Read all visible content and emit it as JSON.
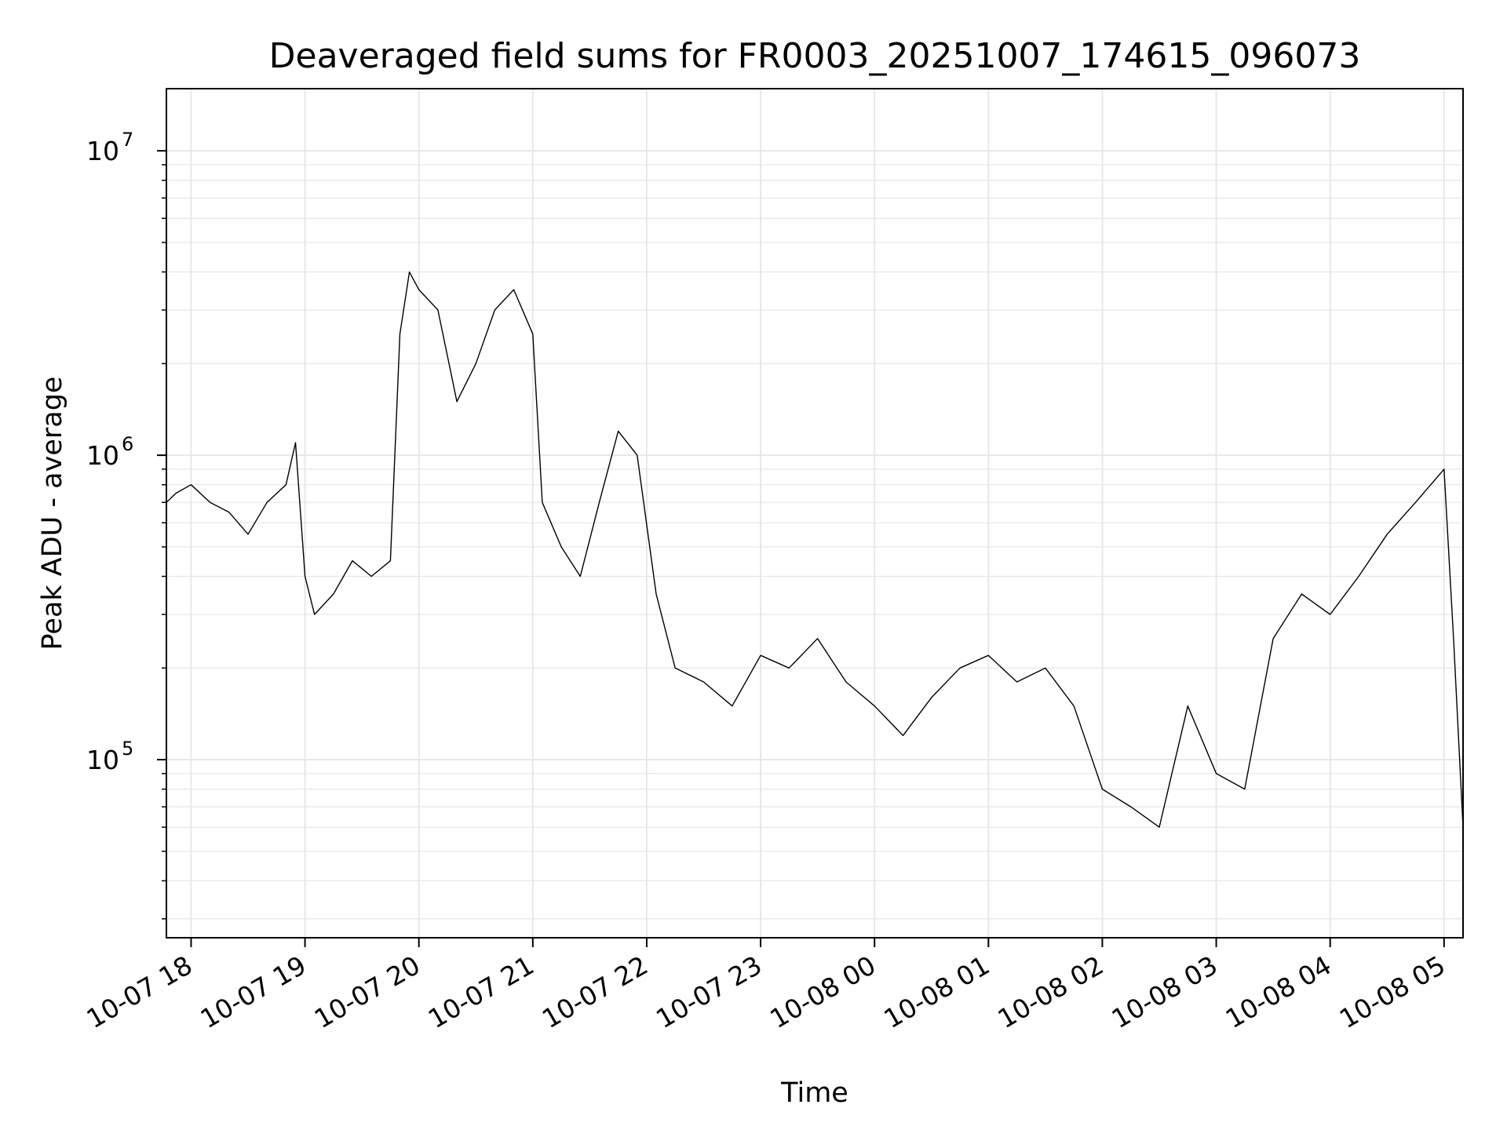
{
  "chart_data": {
    "type": "line",
    "title": "Deaveraged field sums for FR0003_20251007_174615_096073",
    "xlabel": "Time",
    "ylabel": "Peak ADU - average",
    "y_scale": "log",
    "ylim": [
      26000,
      16000000
    ],
    "xlim": [
      "2025-10-07T17:47",
      "2025-10-08T05:10"
    ],
    "x_ticks": [
      "10-07 18",
      "10-07 19",
      "10-07 20",
      "10-07 21",
      "10-07 22",
      "10-07 23",
      "10-08 00",
      "10-08 01",
      "10-08 02",
      "10-08 03",
      "10-08 04",
      "10-08 05"
    ],
    "y_ticks": [
      {
        "base": "10",
        "exp": "5",
        "value": 100000
      },
      {
        "base": "10",
        "exp": "6",
        "value": 1000000
      },
      {
        "base": "10",
        "exp": "7",
        "value": 10000000
      }
    ],
    "grid": true,
    "line_color": "#000000",
    "series": [
      {
        "x": [
          "2025-10-07T17:47",
          "2025-10-07T17:52",
          "2025-10-07T18:00",
          "2025-10-07T18:10",
          "2025-10-07T18:20",
          "2025-10-07T18:30",
          "2025-10-07T18:40",
          "2025-10-07T18:50",
          "2025-10-07T18:55",
          "2025-10-07T19:00",
          "2025-10-07T19:05",
          "2025-10-07T19:15",
          "2025-10-07T19:25",
          "2025-10-07T19:35",
          "2025-10-07T19:45",
          "2025-10-07T19:50",
          "2025-10-07T19:55",
          "2025-10-07T20:00",
          "2025-10-07T20:10",
          "2025-10-07T20:20",
          "2025-10-07T20:30",
          "2025-10-07T20:40",
          "2025-10-07T20:50",
          "2025-10-07T21:00",
          "2025-10-07T21:05",
          "2025-10-07T21:15",
          "2025-10-07T21:25",
          "2025-10-07T21:35",
          "2025-10-07T21:45",
          "2025-10-07T21:55",
          "2025-10-07T22:05",
          "2025-10-07T22:15",
          "2025-10-07T22:30",
          "2025-10-07T22:45",
          "2025-10-07T23:00",
          "2025-10-07T23:15",
          "2025-10-07T23:30",
          "2025-10-07T23:45",
          "2025-10-08T00:00",
          "2025-10-08T00:15",
          "2025-10-08T00:30",
          "2025-10-08T00:45",
          "2025-10-08T01:00",
          "2025-10-08T01:15",
          "2025-10-08T01:30",
          "2025-10-08T01:45",
          "2025-10-08T02:00",
          "2025-10-08T02:15",
          "2025-10-08T02:30",
          "2025-10-08T02:45",
          "2025-10-08T03:00",
          "2025-10-08T03:15",
          "2025-10-08T03:30",
          "2025-10-08T03:45",
          "2025-10-08T04:00",
          "2025-10-08T04:15",
          "2025-10-08T04:30",
          "2025-10-08T04:45",
          "2025-10-08T05:00",
          "2025-10-08T05:05",
          "2025-10-08T05:10"
        ],
        "y": [
          700000,
          750000,
          800000,
          700000,
          650000,
          550000,
          700000,
          800000,
          1100000,
          400000,
          300000,
          350000,
          450000,
          400000,
          450000,
          2500000,
          4000000,
          3500000,
          3000000,
          1500000,
          2000000,
          3000000,
          3500000,
          2500000,
          700000,
          500000,
          400000,
          700000,
          1200000,
          1000000,
          350000,
          200000,
          180000,
          150000,
          220000,
          200000,
          250000,
          180000,
          150000,
          120000,
          160000,
          200000,
          220000,
          180000,
          200000,
          150000,
          80000,
          70000,
          60000,
          150000,
          90000,
          80000,
          250000,
          350000,
          300000,
          400000,
          550000,
          700000,
          900000,
          250000,
          60000
        ]
      }
    ]
  }
}
